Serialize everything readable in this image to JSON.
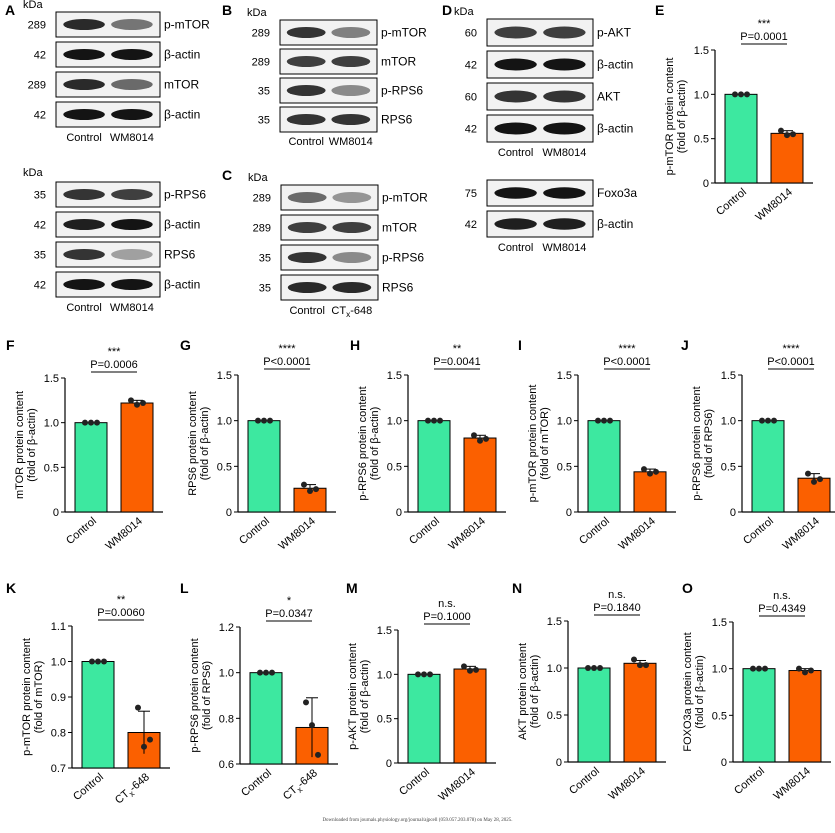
{
  "colors": {
    "control": "#3de8a0",
    "treated": "#fb6000"
  },
  "footer": "Downloaded from journals.physiology.org/journal/ajpcell (059.057.203.078) on May 28, 2025.",
  "blots": [
    {
      "label": "A",
      "kda_header": "kDa",
      "strips": [
        {
          "kda": "289",
          "band": "p-mTOR"
        },
        {
          "kda": "42",
          "band": "β-actin"
        },
        {
          "kda": "289",
          "band": "mTOR"
        },
        {
          "kda": "42",
          "band": "β-actin"
        }
      ],
      "lanes": [
        "Control",
        "WM8014"
      ]
    },
    {
      "label": "",
      "kda_header": "kDa",
      "strips": [
        {
          "kda": "35",
          "band": "p-RPS6"
        },
        {
          "kda": "42",
          "band": "β-actin"
        },
        {
          "kda": "35",
          "band": "RPS6"
        },
        {
          "kda": "42",
          "band": "β-actin"
        }
      ],
      "lanes": [
        "Control",
        "WM8014"
      ]
    },
    {
      "label": "B",
      "kda_header": "kDa",
      "strips": [
        {
          "kda": "289",
          "band": "p-mTOR"
        },
        {
          "kda": "289",
          "band": "mTOR"
        },
        {
          "kda": "35",
          "band": "p-RPS6"
        },
        {
          "kda": "35",
          "band": "RPS6"
        }
      ],
      "lanes": [
        "Control",
        "WM8014"
      ]
    },
    {
      "label": "C",
      "kda_header": "kDa",
      "strips": [
        {
          "kda": "289",
          "band": "p-mTOR"
        },
        {
          "kda": "289",
          "band": "mTOR"
        },
        {
          "kda": "35",
          "band": "p-RPS6"
        },
        {
          "kda": "35",
          "band": "RPS6"
        }
      ],
      "lanes": [
        "Control",
        "CTx-648"
      ]
    },
    {
      "label": "D",
      "kda_header": "kDa",
      "strips": [
        {
          "kda": "60",
          "band": "p-AKT"
        },
        {
          "kda": "42",
          "band": "β-actin"
        },
        {
          "kda": "60",
          "band": "AKT"
        },
        {
          "kda": "42",
          "band": "β-actin"
        }
      ],
      "lanes": [
        "Control",
        "WM8014"
      ]
    },
    {
      "label": "",
      "kda_header": "",
      "strips": [
        {
          "kda": "75",
          "band": "Foxo3a"
        },
        {
          "kda": "42",
          "band": "β-actin"
        }
      ],
      "lanes": [
        "Control",
        "WM8014"
      ]
    }
  ],
  "chart_data": [
    {
      "label": "E",
      "type": "bar",
      "ylabel": [
        "p-mTOR protein content",
        "(fold of β-actin)"
      ],
      "categories": [
        "Control",
        "WM8014"
      ],
      "values": [
        1.0,
        0.56
      ],
      "error": [
        0.0,
        0.03
      ],
      "points": [
        [
          1.0,
          1.0,
          1.0
        ],
        [
          0.59,
          0.54,
          0.55
        ]
      ],
      "ylim": [
        0,
        1.5
      ],
      "ticks": [
        0,
        0.5,
        1.0,
        1.5
      ],
      "pvalue": "P=0.0001",
      "stars": "***"
    },
    {
      "label": "F",
      "type": "bar",
      "ylabel": [
        "mTOR protein content",
        "(fold of β-actin)"
      ],
      "categories": [
        "Control",
        "WM8014"
      ],
      "values": [
        1.0,
        1.22
      ],
      "error": [
        0.0,
        0.03
      ],
      "points": [
        [
          1.0,
          1.0,
          1.0
        ],
        [
          1.25,
          1.2,
          1.22
        ]
      ],
      "ylim": [
        0,
        1.5
      ],
      "ticks": [
        0,
        0.5,
        1.0,
        1.5
      ],
      "pvalue": "P=0.0006",
      "stars": "***"
    },
    {
      "label": "G",
      "type": "bar",
      "ylabel": [
        "RPS6 protein content",
        "(fold of β-actin)"
      ],
      "categories": [
        "Control",
        "WM8014"
      ],
      "values": [
        1.0,
        0.26
      ],
      "error": [
        0.0,
        0.04
      ],
      "points": [
        [
          1.0,
          1.0,
          1.0
        ],
        [
          0.3,
          0.23,
          0.25
        ]
      ],
      "ylim": [
        0,
        1.5
      ],
      "ticks": [
        0,
        0.5,
        1.0,
        1.5
      ],
      "pvalue": "P<0.0001",
      "stars": "****"
    },
    {
      "label": "H",
      "type": "bar",
      "ylabel": [
        "p-RPS6 protein content",
        "(fold of β-actin)"
      ],
      "categories": [
        "Control",
        "WM8014"
      ],
      "values": [
        1.0,
        0.81
      ],
      "error": [
        0.0,
        0.03
      ],
      "points": [
        [
          1.0,
          1.0,
          1.0
        ],
        [
          0.84,
          0.78,
          0.8
        ]
      ],
      "ylim": [
        0,
        1.5
      ],
      "ticks": [
        0,
        0.5,
        1.0,
        1.5
      ],
      "pvalue": "P=0.0041",
      "stars": "**"
    },
    {
      "label": "I",
      "type": "bar",
      "ylabel": [
        "p-mTOR protein content",
        "(fold of mTOR)"
      ],
      "categories": [
        "Control",
        "WM8014"
      ],
      "values": [
        1.0,
        0.44
      ],
      "error": [
        0.0,
        0.03
      ],
      "points": [
        [
          1.0,
          1.0,
          1.0
        ],
        [
          0.47,
          0.42,
          0.44
        ]
      ],
      "ylim": [
        0,
        1.5
      ],
      "ticks": [
        0,
        0.5,
        1.0,
        1.5
      ],
      "pvalue": "P<0.0001",
      "stars": "****"
    },
    {
      "label": "J",
      "type": "bar",
      "ylabel": [
        "p-RPS6 protein content",
        "(fold of RPS6)"
      ],
      "categories": [
        "Control",
        "WM8014"
      ],
      "values": [
        1.0,
        0.37
      ],
      "error": [
        0.0,
        0.05
      ],
      "points": [
        [
          1.0,
          1.0,
          1.0
        ],
        [
          0.42,
          0.33,
          0.36
        ]
      ],
      "ylim": [
        0,
        1.5
      ],
      "ticks": [
        0,
        0.5,
        1.0,
        1.5
      ],
      "pvalue": "P<0.0001",
      "stars": "****"
    },
    {
      "label": "K",
      "type": "bar",
      "ylabel": [
        "p-mTOR protein content",
        "(fold of mTOR)"
      ],
      "categories": [
        "Control",
        "CTx-648"
      ],
      "values": [
        1.0,
        0.8
      ],
      "error": [
        0.0,
        0.06
      ],
      "points": [
        [
          1.0,
          1.0,
          1.0
        ],
        [
          0.87,
          0.76,
          0.78
        ]
      ],
      "ylim": [
        0.7,
        1.1
      ],
      "ticks": [
        0.7,
        0.8,
        0.9,
        1.0,
        1.1
      ],
      "pvalue": "P=0.0060",
      "stars": "**"
    },
    {
      "label": "L",
      "type": "bar",
      "ylabel": [
        "p-RPS6 protein content",
        "(fold of RPS6)"
      ],
      "categories": [
        "Control",
        "CTx-648"
      ],
      "values": [
        1.0,
        0.76
      ],
      "error": [
        0.0,
        0.13
      ],
      "points": [
        [
          1.0,
          1.0,
          1.0
        ],
        [
          0.87,
          0.77,
          0.64
        ]
      ],
      "ylim": [
        0.6,
        1.2
      ],
      "ticks": [
        0.6,
        0.8,
        1.0,
        1.2
      ],
      "pvalue": "P=0.0347",
      "stars": "*"
    },
    {
      "label": "M",
      "type": "bar",
      "ylabel": [
        "p-AKT protein content",
        "(fold of β-actin)"
      ],
      "categories": [
        "Control",
        "WM8014"
      ],
      "values": [
        1.0,
        1.06
      ],
      "error": [
        0.0,
        0.03
      ],
      "points": [
        [
          1.0,
          1.0,
          1.0
        ],
        [
          1.09,
          1.04,
          1.05
        ]
      ],
      "ylim": [
        0,
        1.5
      ],
      "ticks": [
        0,
        0.5,
        1.0,
        1.5
      ],
      "pvalue": "P=0.1000",
      "stars": "n.s."
    },
    {
      "label": "N",
      "type": "bar",
      "ylabel": [
        "AKT protein content",
        "(fold of β-actin)"
      ],
      "categories": [
        "Control",
        "WM8014"
      ],
      "values": [
        1.0,
        1.05
      ],
      "error": [
        0.0,
        0.03
      ],
      "points": [
        [
          1.0,
          1.0,
          1.0
        ],
        [
          1.09,
          1.03,
          1.03
        ]
      ],
      "ylim": [
        0,
        1.5
      ],
      "ticks": [
        0,
        0.5,
        1.0,
        1.5
      ],
      "pvalue": "P=0.1840",
      "stars": "n.s."
    },
    {
      "label": "O",
      "type": "bar",
      "ylabel": [
        "FOXO3a protein content",
        "(fold of β-actin)"
      ],
      "categories": [
        "Control",
        "WM8014"
      ],
      "values": [
        1.0,
        0.98
      ],
      "error": [
        0.0,
        0.02
      ],
      "points": [
        [
          1.0,
          1.0,
          1.0
        ],
        [
          1.0,
          0.96,
          0.98
        ]
      ],
      "ylim": [
        0,
        1.5
      ],
      "ticks": [
        0,
        0.5,
        1.0,
        1.5
      ],
      "pvalue": "P=0.4349",
      "stars": "n.s."
    }
  ]
}
